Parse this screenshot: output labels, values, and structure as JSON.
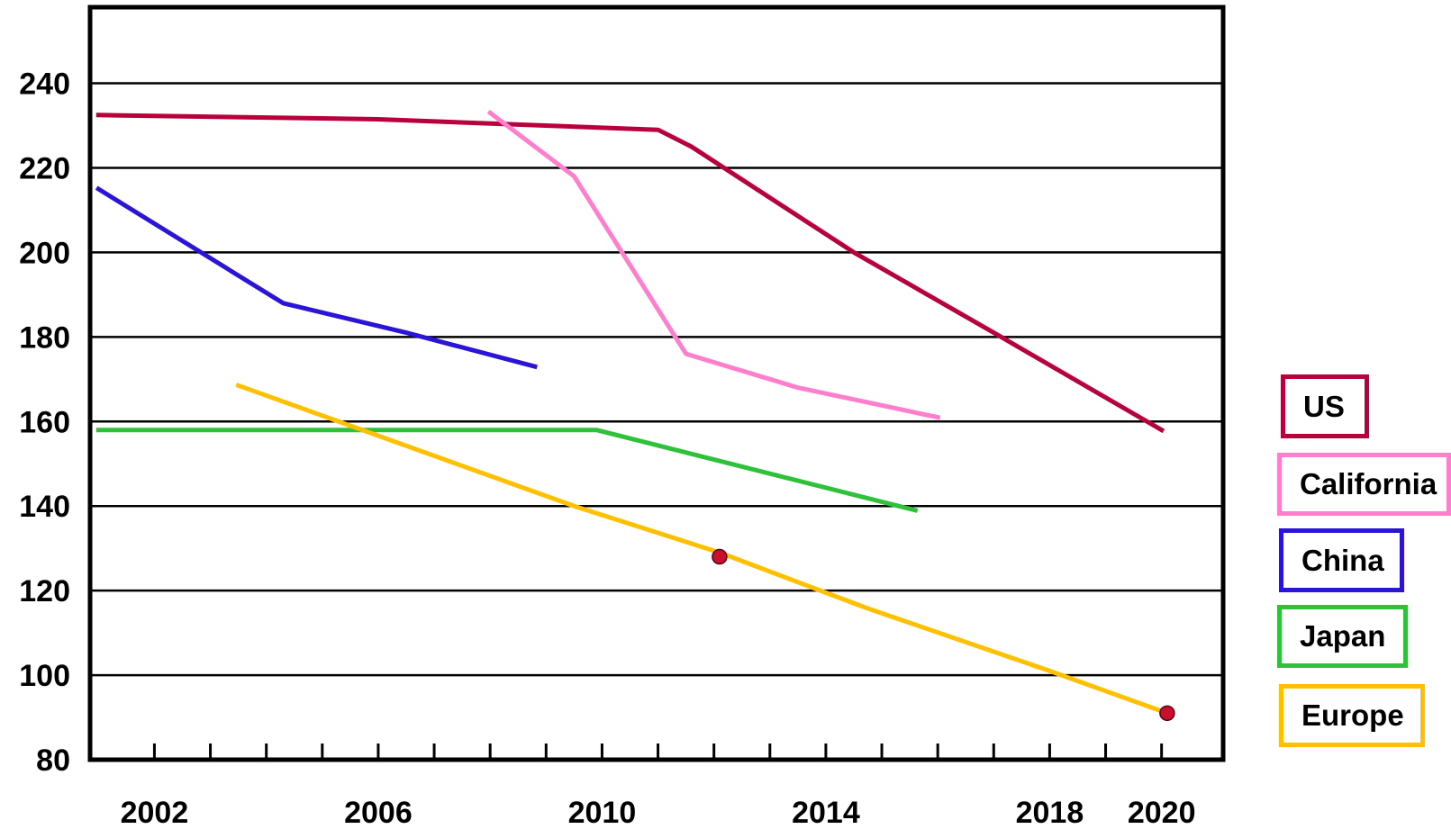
{
  "chart_data": {
    "type": "line",
    "title": "",
    "xlabel": "",
    "ylabel": "",
    "xlim": [
      2000.85,
      2021.1
    ],
    "ylim": [
      80,
      258
    ],
    "grid": true,
    "legend_position": "right",
    "y_ticks": [
      80,
      100,
      120,
      140,
      160,
      180,
      200,
      220,
      240
    ],
    "x_tick_labels": [
      "2002",
      "2006",
      "2010",
      "2014",
      "2018",
      "2020"
    ],
    "x_tick_label_values": [
      2002,
      2006,
      2010,
      2014,
      2018,
      2020
    ],
    "x_minor_ticks": [
      2002,
      2003,
      2004,
      2005,
      2006,
      2007,
      2008,
      2009,
      2010,
      2011,
      2012,
      2013,
      2014,
      2015,
      2016,
      2017,
      2018,
      2019,
      2020
    ],
    "series": [
      {
        "name": "US",
        "color": "#b8003c",
        "points": [
          [
            2001,
            232.5
          ],
          [
            2006,
            231.5
          ],
          [
            2011,
            229
          ],
          [
            2011.6,
            225
          ],
          [
            2014.5,
            200
          ],
          [
            2017,
            181
          ],
          [
            2020,
            158
          ]
        ]
      },
      {
        "name": "California",
        "color": "#ff7fcc",
        "points": [
          [
            2008,
            233
          ],
          [
            2009.5,
            218
          ],
          [
            2011.5,
            176
          ],
          [
            2013.5,
            168
          ],
          [
            2016,
            161
          ]
        ]
      },
      {
        "name": "China",
        "color": "#2a14d8",
        "points": [
          [
            2001,
            215
          ],
          [
            2004.3,
            188
          ],
          [
            2006.5,
            181
          ],
          [
            2008.8,
            173
          ]
        ]
      },
      {
        "name": "Japan",
        "color": "#2ec13a",
        "points": [
          [
            2001,
            158
          ],
          [
            2009.9,
            158
          ],
          [
            2015.6,
            139
          ]
        ]
      },
      {
        "name": "Europe",
        "color": "#ffc000",
        "points": [
          [
            2003.5,
            168.5
          ],
          [
            2009.5,
            140
          ],
          [
            2012.1,
            129
          ],
          [
            2014.7,
            116
          ],
          [
            2018,
            101
          ],
          [
            2020.1,
            91
          ]
        ]
      }
    ],
    "markers": [
      {
        "x": 2012.1,
        "y": 128,
        "color": "#c8102e"
      },
      {
        "x": 2020.1,
        "y": 91,
        "color": "#c8102e"
      }
    ]
  },
  "legend": [
    {
      "key": "us",
      "label": "US",
      "border": "#b8003c"
    },
    {
      "key": "california",
      "label": "California",
      "border": "#ff7fcc"
    },
    {
      "key": "china",
      "label": "China",
      "border": "#2a14d8"
    },
    {
      "key": "japan",
      "label": "Japan",
      "border": "#2ec13a"
    },
    {
      "key": "europe",
      "label": "Europe",
      "border": "#ffc000"
    }
  ]
}
